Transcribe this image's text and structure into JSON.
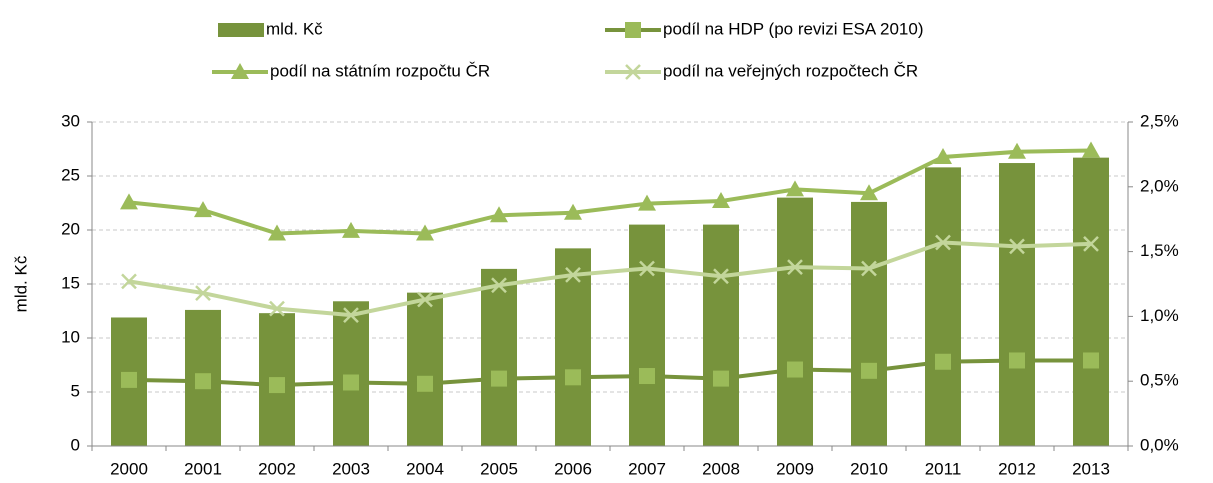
{
  "chart_data": {
    "type": "bar",
    "ylabel": "mld. Kč",
    "categories": [
      "2000",
      "2001",
      "2002",
      "2003",
      "2004",
      "2005",
      "2006",
      "2007",
      "2008",
      "2009",
      "2010",
      "2011",
      "2012",
      "2013"
    ],
    "series": [
      {
        "name": "mld. Kč",
        "type": "bar",
        "color": "#77933c",
        "values": [
          11.9,
          12.6,
          12.3,
          13.4,
          14.2,
          16.4,
          18.3,
          20.5,
          20.5,
          23.0,
          22.6,
          25.8,
          26.2,
          26.7
        ]
      },
      {
        "name": "podíl na HDP (po revizi ESA 2010)",
        "type": "line",
        "marker": "square",
        "axis": "y2",
        "color": "#77933c",
        "marker_color": "#9bbb59",
        "values": [
          0.51,
          0.5,
          0.47,
          0.49,
          0.48,
          0.52,
          0.53,
          0.54,
          0.52,
          0.59,
          0.58,
          0.65,
          0.66,
          0.66
        ]
      },
      {
        "name": "podíl na státním rozpočtu ČR",
        "type": "line",
        "marker": "triangle",
        "axis": "y2",
        "color": "#9bbb59",
        "marker_color": "#9bbb59",
        "values": [
          1.88,
          1.82,
          1.64,
          1.66,
          1.64,
          1.78,
          1.8,
          1.87,
          1.89,
          1.98,
          1.95,
          2.23,
          2.27,
          2.28
        ]
      },
      {
        "name": "podíl na veřejných rozpočtech ČR",
        "type": "line",
        "marker": "x",
        "axis": "y2",
        "color": "#c3d69b",
        "marker_color": "#c3d69b",
        "values": [
          1.27,
          1.18,
          1.06,
          1.01,
          1.13,
          1.24,
          1.32,
          1.37,
          1.31,
          1.38,
          1.37,
          1.57,
          1.54,
          1.56
        ]
      }
    ],
    "ylim": [
      0,
      30
    ],
    "yticks": [
      0,
      5,
      10,
      15,
      20,
      25,
      30
    ],
    "y2lim": [
      0,
      2.5
    ],
    "y2ticks": [
      {
        "value": 0,
        "label": "0,0%"
      },
      {
        "value": 0.5,
        "label": "0,5%"
      },
      {
        "value": 1,
        "label": "1,0%"
      },
      {
        "value": 1.5,
        "label": "1,5%"
      },
      {
        "value": 2,
        "label": "2,0%"
      },
      {
        "value": 2.5,
        "label": "2,5%"
      }
    ],
    "grid": true,
    "legend": "top"
  }
}
